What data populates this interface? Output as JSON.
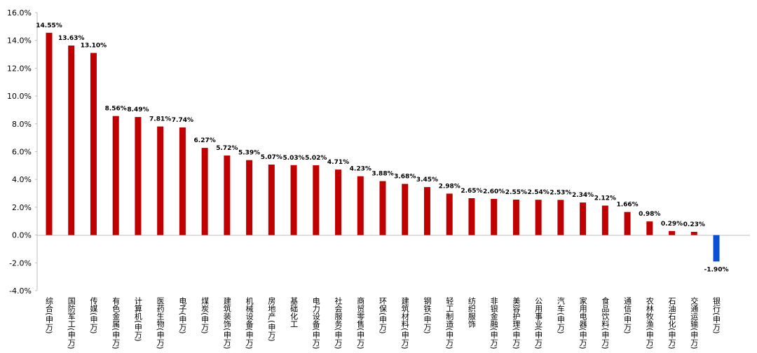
{
  "chart_data": {
    "type": "bar",
    "title": "",
    "xlabel": "",
    "ylabel": "",
    "ylim": [
      -4,
      16
    ],
    "yticks": [
      "16.0%",
      "14.0%",
      "12.0%",
      "10.0%",
      "8.0%",
      "6.0%",
      "4.0%",
      "2.0%",
      "0.0%",
      "-2.0%",
      "-4.0%"
    ],
    "grid": false,
    "colors": {
      "positive": "#c00000",
      "negative": "#0b4fd9"
    },
    "categories": [
      "综合(申万)",
      "国防军工(申万)",
      "传媒(申万)",
      "有色金属(申万)",
      "计算机(申万)",
      "医药生物(申万)",
      "电子(申万)",
      "煤炭(申万)",
      "建筑装饰(申万)",
      "机械设备(申万)",
      "房地产(申万)",
      "基础化工",
      "电力设备(申万)",
      "社会服务(申万)",
      "商贸零售(申万)",
      "环保(申万)",
      "建筑材料(申万)",
      "钢铁(申万)",
      "轻工制造(申万)",
      "纺织服饰",
      "非银金融(申万)",
      "美容护理(申万)",
      "公用事业(申万)",
      "汽车(申万)",
      "家用电器(申万)",
      "食品饮料(申万)",
      "通信(申万)",
      "农林牧渔(申万)",
      "石油石化(申万)",
      "交通运输(申万)",
      "银行(申万)"
    ],
    "values": [
      14.55,
      13.63,
      13.1,
      8.56,
      8.49,
      7.81,
      7.74,
      6.27,
      5.72,
      5.39,
      5.07,
      5.03,
      5.02,
      4.71,
      4.23,
      3.88,
      3.68,
      3.45,
      2.98,
      2.65,
      2.6,
      2.55,
      2.54,
      2.53,
      2.34,
      2.12,
      1.66,
      0.98,
      0.29,
      0.23,
      -1.9
    ],
    "data_labels": [
      "14.55%",
      "13.63%",
      "13.10%",
      "8.56%",
      "8.49%",
      "7.81%",
      "7.74%",
      "6.27%",
      "5.72%",
      "5.39%",
      "5.07%",
      "5.03%",
      "5.02%",
      "4.71%",
      "4.23%",
      "3.88%",
      "3.68%",
      "3.45%",
      "2.98%",
      "2.65%",
      "2.60%",
      "2.55%",
      "2.54%",
      "2.53%",
      "2.34%",
      "2.12%",
      "1.66%",
      "0.98%",
      "0.29%",
      "0.23%",
      "-1.90%"
    ]
  }
}
